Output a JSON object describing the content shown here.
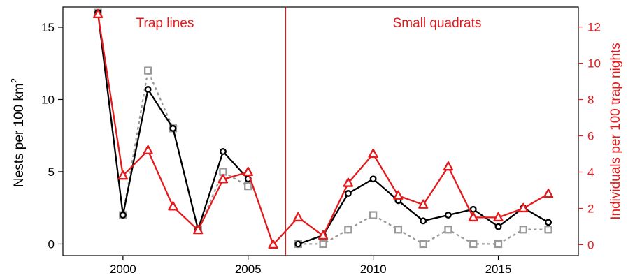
{
  "chart_data": {
    "type": "line",
    "xlabel": "",
    "ylabel_left": "Nests per 100 km",
    "ylabel_left_sup": "2",
    "ylabel_right": "Individuals per 100 trap nights",
    "xlim": [
      1997.6,
      2018.2
    ],
    "ylim_left": [
      -0.8,
      16.4
    ],
    "ylim_right": [
      -0.6,
      13.1
    ],
    "x_ticks": [
      2000,
      2005,
      2010,
      2015
    ],
    "y_ticks_left": [
      0,
      5,
      10,
      15
    ],
    "y_ticks_right": [
      0,
      2,
      4,
      6,
      8,
      10,
      12
    ],
    "divider_x": 2006.5,
    "panel_labels": [
      "Trap lines",
      "Small quadrats"
    ],
    "colors": {
      "red": "#e31a1c",
      "black": "#000000",
      "grey": "#999999"
    },
    "series": [
      {
        "axis": "left",
        "marker": "square-icon",
        "style": "dotted",
        "color": "#999999",
        "segments": [
          [
            [
              1999,
              16
            ],
            [
              2000,
              2
            ],
            [
              2001,
              12
            ],
            [
              2002,
              8
            ],
            [
              2003,
              1
            ],
            [
              2004,
              5
            ],
            [
              2005,
              4
            ]
          ],
          [
            [
              2007,
              0
            ],
            [
              2008,
              0
            ],
            [
              2009,
              1
            ],
            [
              2010,
              2
            ],
            [
              2011,
              1
            ],
            [
              2012,
              0
            ],
            [
              2013,
              1
            ],
            [
              2014,
              0
            ],
            [
              2015,
              0
            ],
            [
              2016,
              1
            ],
            [
              2017,
              1
            ]
          ]
        ]
      },
      {
        "axis": "left",
        "marker": "circle-icon",
        "style": "solid",
        "color": "#000000",
        "segments": [
          [
            [
              1999,
              16
            ],
            [
              2000,
              2
            ],
            [
              2001,
              10.7
            ],
            [
              2002,
              8
            ],
            [
              2003,
              1
            ],
            [
              2004,
              6.4
            ],
            [
              2005,
              4.5
            ]
          ],
          [
            [
              2007,
              0
            ],
            [
              2008,
              0.6
            ],
            [
              2009,
              3.5
            ],
            [
              2010,
              4.5
            ],
            [
              2011,
              3
            ],
            [
              2012,
              1.6
            ],
            [
              2013,
              2
            ],
            [
              2014,
              2.4
            ],
            [
              2015,
              1.2
            ],
            [
              2016,
              2.5
            ],
            [
              2017,
              1.5
            ]
          ]
        ]
      },
      {
        "axis": "right",
        "marker": "triangle-icon",
        "style": "solid",
        "color": "#e31a1c",
        "segments": [
          [
            [
              1999,
              12.7
            ],
            [
              2000,
              3.8
            ],
            [
              2001,
              5.2
            ],
            [
              2002,
              2.1
            ],
            [
              2003,
              0.8
            ],
            [
              2004,
              3.6
            ],
            [
              2005,
              4
            ],
            [
              2006,
              0
            ],
            [
              2007,
              1.5
            ],
            [
              2008,
              0.5
            ],
            [
              2009,
              3.4
            ],
            [
              2010,
              5
            ],
            [
              2011,
              2.7
            ],
            [
              2012,
              2.2
            ],
            [
              2013,
              4.3
            ],
            [
              2014,
              1.5
            ],
            [
              2015,
              1.5
            ],
            [
              2016,
              2
            ],
            [
              2017,
              2.8
            ]
          ]
        ]
      }
    ]
  }
}
